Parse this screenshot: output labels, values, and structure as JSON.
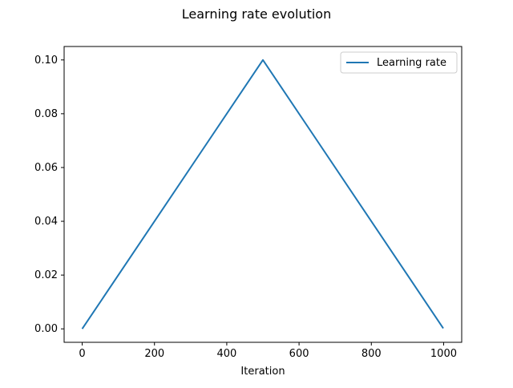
{
  "chart_data": {
    "type": "line",
    "title": "Learning rate evolution",
    "xlabel": "Iteration",
    "ylabel": "",
    "xlim": [
      -50,
      1050
    ],
    "ylim": [
      -0.005,
      0.105
    ],
    "xticks": [
      0,
      200,
      400,
      600,
      800,
      1000
    ],
    "xtick_labels": [
      "0",
      "200",
      "400",
      "600",
      "800",
      "1000"
    ],
    "yticks": [
      0.0,
      0.02,
      0.04,
      0.06,
      0.08,
      0.1
    ],
    "ytick_labels": [
      "0.00",
      "0.02",
      "0.04",
      "0.06",
      "0.08",
      "0.10"
    ],
    "grid": false,
    "legend_position": "top-right",
    "series": [
      {
        "name": "Learning rate",
        "color": "#1f77b4",
        "x": [
          0,
          500,
          999
        ],
        "y": [
          0.0,
          0.1,
          0.0002
        ]
      }
    ]
  }
}
